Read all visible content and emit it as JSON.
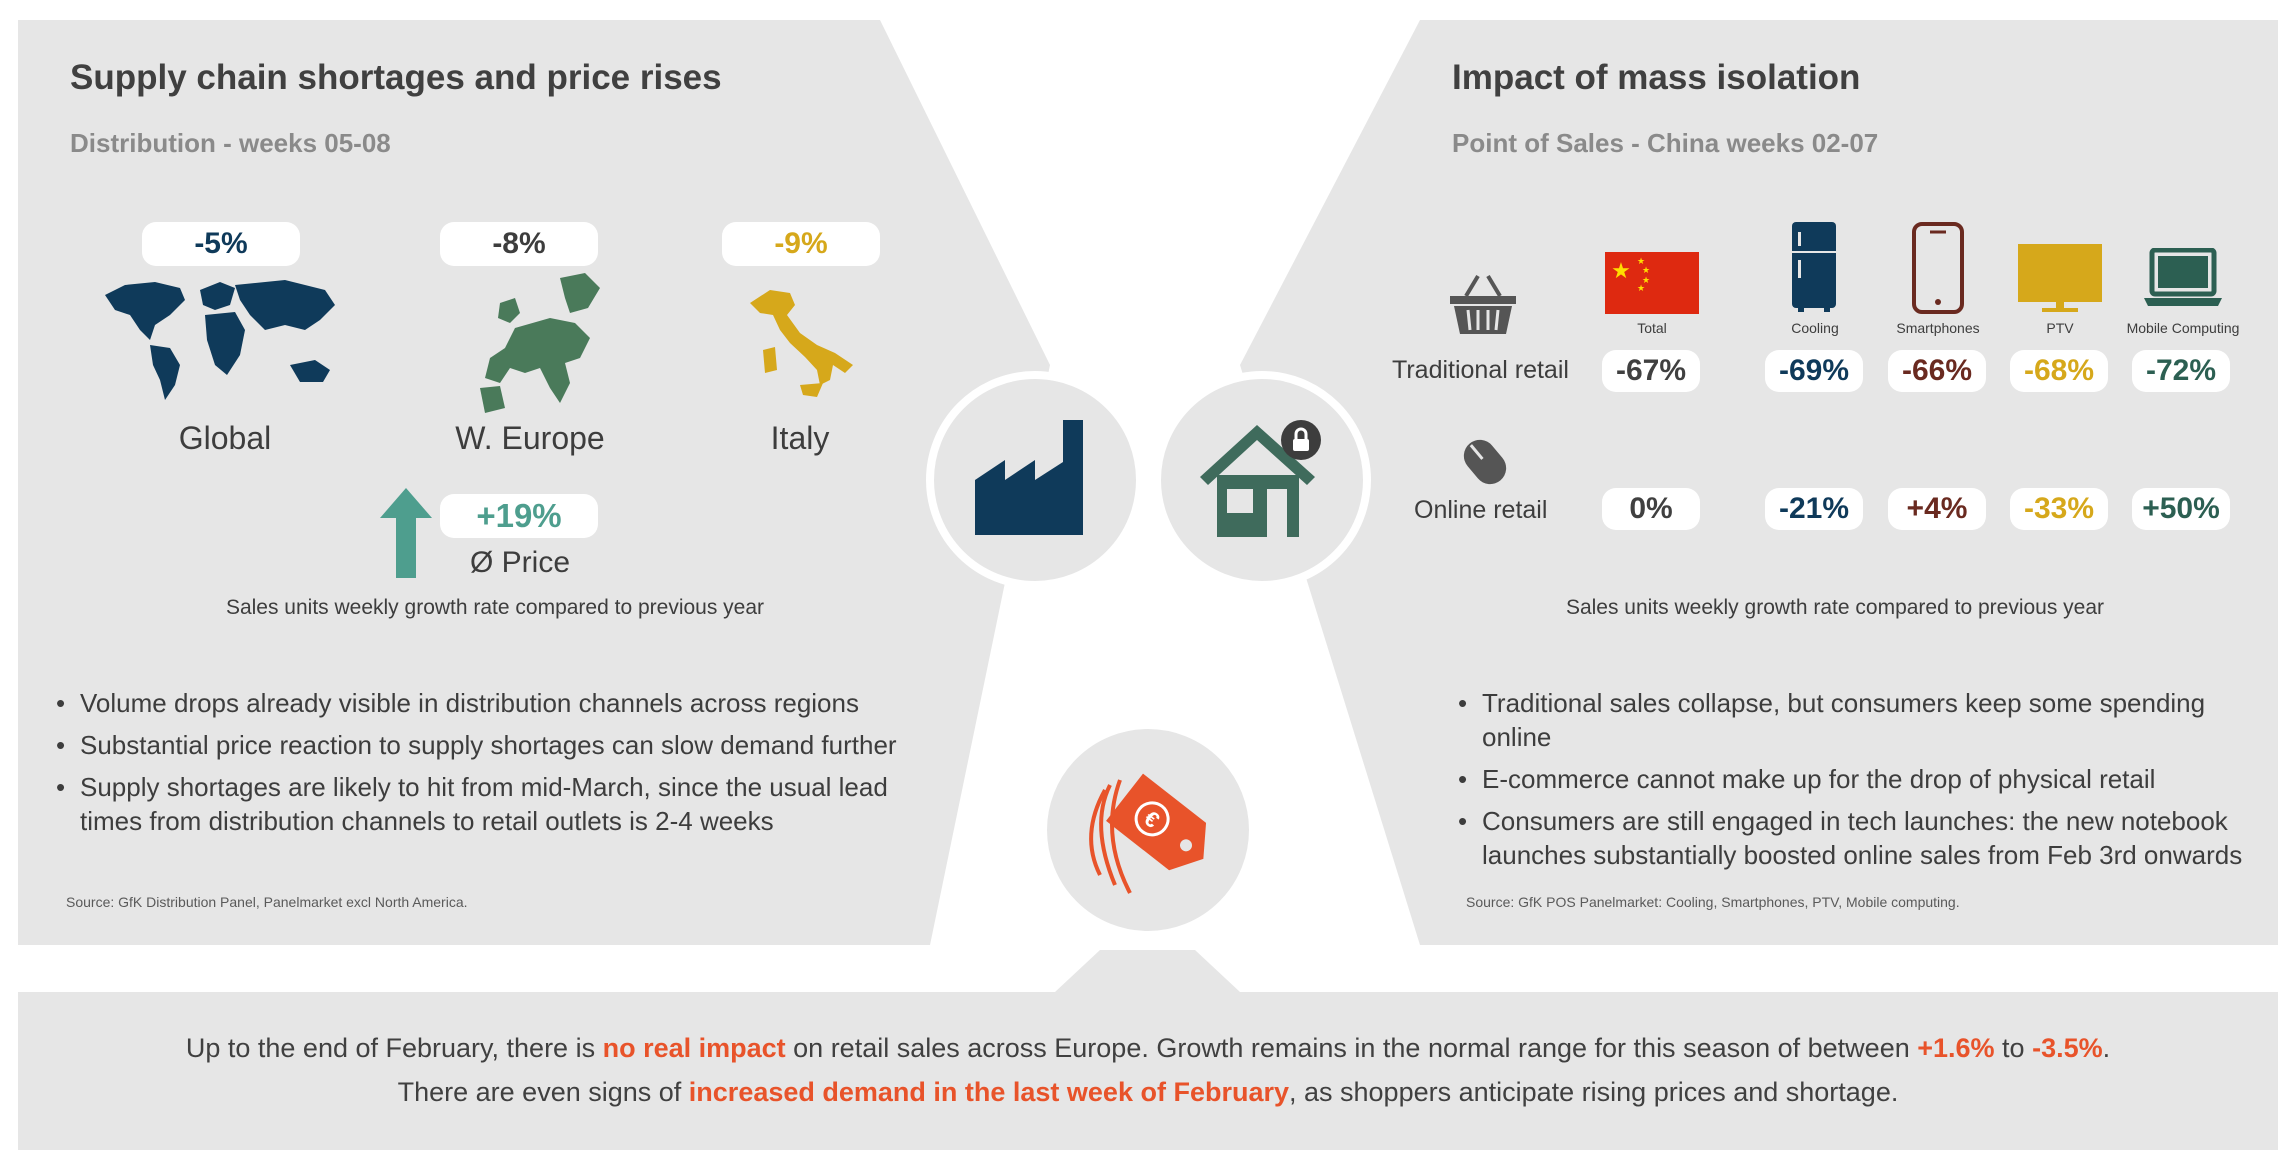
{
  "colors": {
    "navy": "#0f3a5a",
    "green": "#4a7a5a",
    "mustard": "#d6a81b",
    "brown": "#6a2a20",
    "darkgreen": "#2c5f52",
    "teal": "#4e9e8e",
    "orange": "#e8532a",
    "panel": "#e6e6e6"
  },
  "left": {
    "title": "Supply chain shortages and price rises",
    "subtitle": "Distribution - weeks 05-08",
    "regions": [
      {
        "label": "Global",
        "value": "-5%",
        "color": "#0f3a5a"
      },
      {
        "label": "W. Europe",
        "value": "-8%",
        "color": "#4a7a5a"
      },
      {
        "label": "Italy",
        "value": "-9%",
        "color": "#d6a81b"
      }
    ],
    "price": {
      "value": "+19%",
      "label": "Ø Price"
    },
    "note": "Sales units weekly growth rate compared to previous year",
    "bullets": [
      "Volume drops already visible in distribution channels across regions",
      "Substantial price reaction to supply shortages can slow demand further",
      "Supply shortages are likely to hit from mid-March, since the usual lead times from distribution channels to retail outlets is 2-4 weeks"
    ],
    "source": "Source: GfK Distribution Panel, Panelmarket excl North America."
  },
  "right": {
    "title": "Impact of mass isolation",
    "subtitle": "Point of Sales - China weeks 02-07",
    "columns": [
      {
        "label": "Total",
        "icon": "china-flag-icon",
        "traditional": "-67%",
        "online": "0%",
        "color": "#404040"
      },
      {
        "label": "Cooling",
        "icon": "fridge-icon",
        "traditional": "-69%",
        "online": "-21%",
        "color": "#0f3a5a"
      },
      {
        "label": "Smartphones",
        "icon": "smartphone-icon",
        "traditional": "-66%",
        "online": "+4%",
        "color": "#6a2a20"
      },
      {
        "label": "PTV",
        "icon": "tv-icon",
        "traditional": "-68%",
        "online": "-33%",
        "color": "#d6a81b"
      },
      {
        "label": "Mobile Computing",
        "icon": "laptop-icon",
        "traditional": "-72%",
        "online": "+50%",
        "color": "#2c5f52"
      }
    ],
    "rows": {
      "traditional": "Traditional retail",
      "online": "Online retail"
    },
    "note": "Sales units weekly growth rate compared to previous year",
    "bullets": [
      "Traditional sales collapse, but consumers keep some spending online",
      "E-commerce cannot make up for the drop of physical retail",
      "Consumers are still engaged in tech launches: the new notebook launches substantially boosted online sales from Feb 3rd onwards"
    ],
    "source": "Source: GfK POS Panelmarket: Cooling, Smartphones, PTV, Mobile computing."
  },
  "footer": {
    "line1": {
      "a": "Up to the end of February, there is ",
      "b": "no real impact",
      "c": " on retail sales across Europe. Growth remains in the normal range for this season of between ",
      "d": "+1.6%",
      "e": " to ",
      "f": "-3.5%",
      "g": "."
    },
    "line2": {
      "a": "There are even signs of ",
      "b": "increased demand in the last week of February",
      "c": ", as shoppers anticipate rising prices and shortage."
    }
  }
}
